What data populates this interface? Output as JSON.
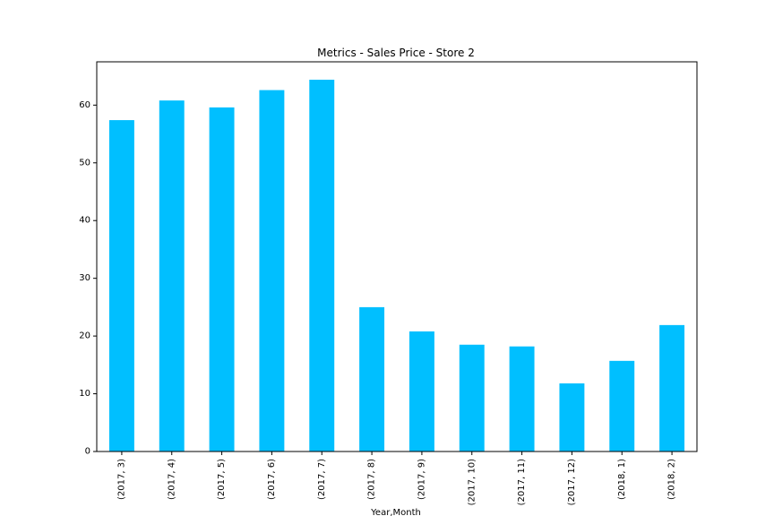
{
  "chart_data": {
    "type": "bar",
    "title": "Metrics - Sales Price - Store 2",
    "xlabel": "Year,Month",
    "ylabel": "",
    "categories": [
      "(2017, 3)",
      "(2017, 4)",
      "(2017, 5)",
      "(2017, 6)",
      "(2017, 7)",
      "(2017, 8)",
      "(2017, 9)",
      "(2017, 10)",
      "(2017, 11)",
      "(2017, 12)",
      "(2018, 1)",
      "(2018, 2)"
    ],
    "values": [
      57.4,
      60.8,
      59.6,
      62.6,
      64.4,
      25.0,
      20.8,
      18.5,
      18.2,
      11.8,
      15.7,
      21.9
    ],
    "ylim": [
      0,
      67.5
    ],
    "yticks": [
      0,
      10,
      20,
      30,
      40,
      50,
      60
    ],
    "bar_color": "#00bfff",
    "grid": false,
    "legend": false
  }
}
